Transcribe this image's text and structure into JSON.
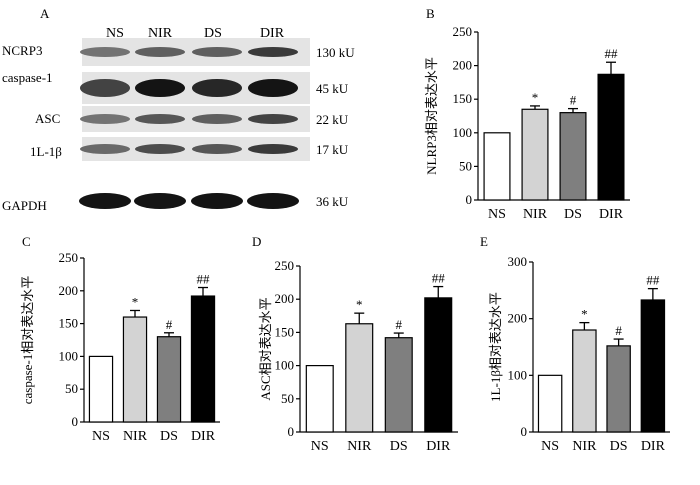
{
  "blot": {
    "panel_letter": "A",
    "lanes": [
      "NS",
      "NIR",
      "DS",
      "DIR"
    ],
    "proteins": [
      {
        "name": "NCRP3",
        "size": "130 kU",
        "intensity": [
          0.45,
          0.55,
          0.55,
          0.75
        ]
      },
      {
        "name": "caspase-1",
        "size": "45 kU",
        "intensity": [
          0.7,
          0.95,
          0.85,
          0.95
        ]
      },
      {
        "name": "ASC",
        "size": "22 kU",
        "intensity": [
          0.45,
          0.6,
          0.55,
          0.7
        ]
      },
      {
        "name": "1L-1β",
        "size": "17 kU",
        "intensity": [
          0.5,
          0.65,
          0.6,
          0.75
        ]
      },
      {
        "name": "GAPDH",
        "size": "36 kU",
        "intensity": [
          0.95,
          0.95,
          0.95,
          0.95
        ]
      }
    ]
  },
  "colors": {
    "NS": "#ffffff",
    "NIR": "#d3d3d3",
    "DS": "#7f7f7f",
    "DIR": "#000000"
  },
  "chart_data": [
    {
      "type": "bar",
      "panel_letter": "B",
      "ylabel": "NLRP3相对表达水平",
      "categories": [
        "NS",
        "NIR",
        "DS",
        "DIR"
      ],
      "values": [
        100,
        135,
        130,
        187
      ],
      "errors": [
        0,
        5,
        6,
        18
      ],
      "annotations": [
        "",
        "*",
        "#",
        "##"
      ],
      "ylim": [
        0,
        250
      ],
      "yticks": [
        0,
        50,
        100,
        150,
        200,
        250
      ]
    },
    {
      "type": "bar",
      "panel_letter": "C",
      "ylabel": "caspase-1相对表达水平",
      "categories": [
        "NS",
        "NIR",
        "DS",
        "DIR"
      ],
      "values": [
        100,
        160,
        130,
        192
      ],
      "errors": [
        0,
        10,
        6,
        13
      ],
      "annotations": [
        "",
        "*",
        "#",
        "##"
      ],
      "ylim": [
        0,
        250
      ],
      "yticks": [
        0,
        50,
        100,
        150,
        200,
        250
      ]
    },
    {
      "type": "bar",
      "panel_letter": "D",
      "ylabel": "ASC相对表达水平",
      "categories": [
        "NS",
        "NIR",
        "DS",
        "DIR"
      ],
      "values": [
        100,
        163,
        142,
        202
      ],
      "errors": [
        0,
        16,
        7,
        17
      ],
      "annotations": [
        "",
        "*",
        "#",
        "##"
      ],
      "ylim": [
        0,
        250
      ],
      "yticks": [
        0,
        50,
        100,
        150,
        200,
        250
      ]
    },
    {
      "type": "bar",
      "panel_letter": "E",
      "ylabel": "1L-1β相对表达水平",
      "categories": [
        "NS",
        "NIR",
        "DS",
        "DIR"
      ],
      "values": [
        100,
        180,
        152,
        233
      ],
      "errors": [
        0,
        13,
        12,
        20
      ],
      "annotations": [
        "",
        "*",
        "#",
        "##"
      ],
      "ylim": [
        0,
        300
      ],
      "yticks": [
        0,
        100,
        200,
        300
      ]
    }
  ]
}
